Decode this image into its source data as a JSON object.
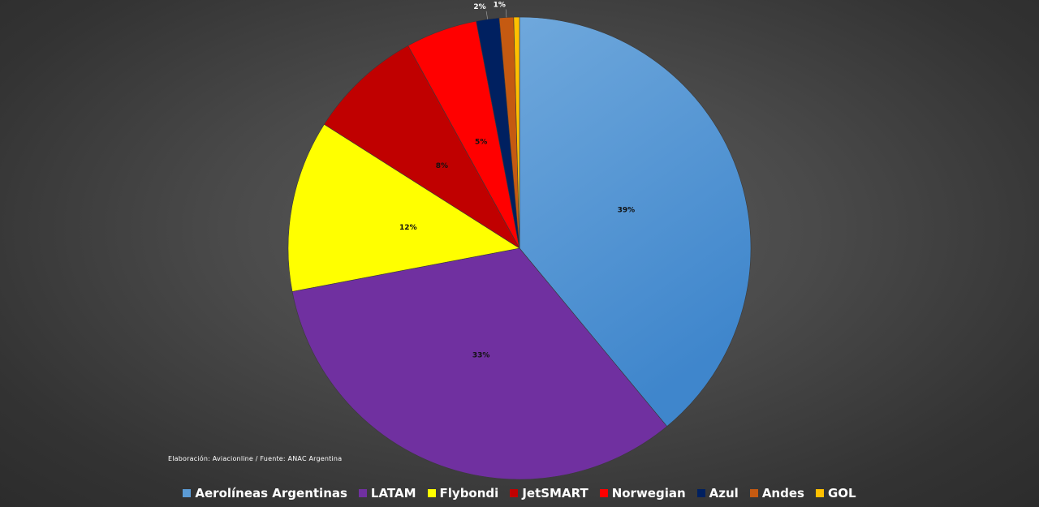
{
  "chart_data": {
    "type": "pie",
    "title": "",
    "slices": [
      {
        "name": "Aerolíneas Argentinas",
        "value": 39,
        "label": "39%",
        "color": "#5b9bd5"
      },
      {
        "name": "LATAM",
        "value": 33,
        "label": "33%",
        "color": "#7030a0"
      },
      {
        "name": "Flybondi",
        "value": 12,
        "label": "12%",
        "color": "#ffff00"
      },
      {
        "name": "JetSMART",
        "value": 8,
        "label": "8%",
        "color": "#c00000"
      },
      {
        "name": "Norwegian",
        "value": 5,
        "label": "5%",
        "color": "#ff0000"
      },
      {
        "name": "Azul",
        "value": 1.6,
        "label": "2%",
        "color": "#002060"
      },
      {
        "name": "Andes",
        "value": 1.0,
        "label": "1%",
        "color": "#c55a11"
      },
      {
        "name": "GOL",
        "value": 0.4,
        "label": "",
        "color": "#ffc000"
      }
    ],
    "legend_position": "bottom"
  },
  "source_note": "Elaboración: Aviacionline  /  Fuente: ANAC Argentina"
}
